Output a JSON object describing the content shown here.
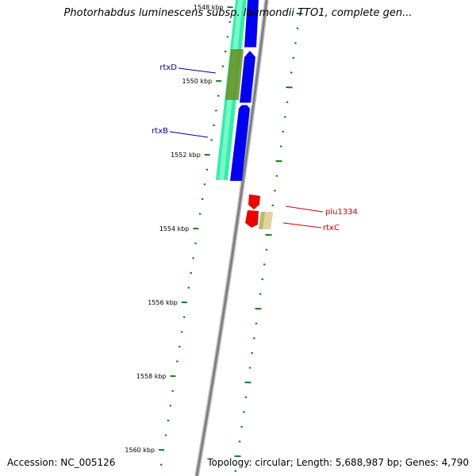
{
  "title": "Photorhabdus luminescens subsp. laumondii TTO1, complete gen...",
  "footer": {
    "accession": "Accession: NC_005126",
    "topology": "Topology: circular; Length: 5,688,987 bp; Genes: 4,790"
  },
  "kbp_labels": [
    "1548 kbp",
    "1550 kbp",
    "1552 kbp",
    "1554 kbp",
    "1556 kbp",
    "1558 kbp",
    "1560 kbp"
  ],
  "genes": [
    {
      "name": "rtxD",
      "strand": "forward",
      "color": "#00008b"
    },
    {
      "name": "rtxB",
      "strand": "forward",
      "color": "#00008b"
    },
    {
      "name": "plu1334",
      "strand": "reverse",
      "color": "#cc0000"
    },
    {
      "name": "rtxC",
      "strand": "reverse",
      "color": "#cc0000"
    }
  ],
  "colors": {
    "backbone": "#808080",
    "tick": "#1a7a1a",
    "forward_feature": "#0000ee",
    "reverse_feature": "#ee0000",
    "cog_band": "#33eeaa",
    "olive_band": "#6b8e23",
    "tan_box": "#bdb76b"
  }
}
